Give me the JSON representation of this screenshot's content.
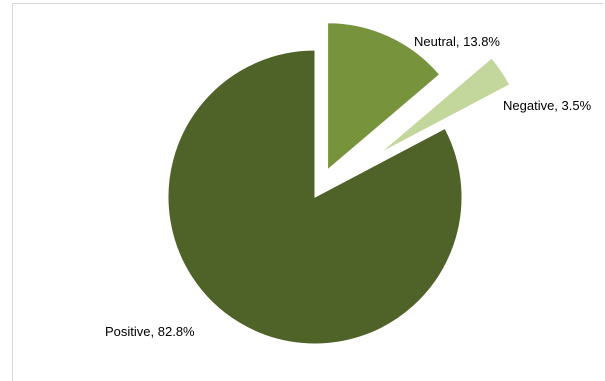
{
  "chart_data": {
    "type": "pie",
    "title": "",
    "series": [
      {
        "values": [
          82.8,
          13.8,
          3.5
        ],
        "categories": [
          "Positive",
          "Neutral",
          "Negative"
        ]
      }
    ],
    "slices": [
      {
        "category": "Positive",
        "value": 82.8,
        "label": "Positive, 82.8%",
        "color": "#4f6228",
        "exploded": false
      },
      {
        "category": "Neutral",
        "value": 13.8,
        "label": "Neutral, 13.8%",
        "color": "#77933c",
        "exploded": true
      },
      {
        "category": "Negative",
        "value": 3.5,
        "label": "Negative, 3.5%",
        "color": "#c3d69b",
        "exploded": true
      }
    ],
    "legend": "none"
  }
}
